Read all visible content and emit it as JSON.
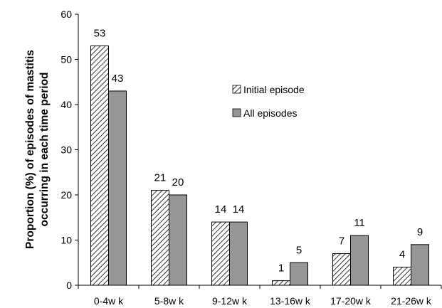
{
  "chart_data": {
    "type": "bar",
    "categories": [
      "0-4w k",
      "5-8w k",
      "9-12w k",
      "13-16w k",
      "17-20w k",
      "21-26w k"
    ],
    "series": [
      {
        "name": "Initial episode",
        "values": [
          53,
          21,
          14,
          1,
          7,
          4
        ],
        "pattern": "hatch",
        "color": "#000000"
      },
      {
        "name": "All episodes",
        "values": [
          43,
          20,
          14,
          5,
          11,
          9
        ],
        "color": "#969696"
      }
    ],
    "data_labels": [
      [
        "53",
        "21",
        "14",
        "1",
        "7",
        "4"
      ],
      [
        "43",
        "20",
        "14",
        "5",
        "11",
        "9"
      ]
    ],
    "ylabel_lines": [
      "Proportion (%) of episodes of mastitis",
      "occurring in each time period"
    ],
    "ylim": [
      0,
      60
    ],
    "yticks": [
      0,
      10,
      20,
      30,
      40,
      50,
      60
    ],
    "grid": false,
    "legend_position": "upper-middle"
  }
}
